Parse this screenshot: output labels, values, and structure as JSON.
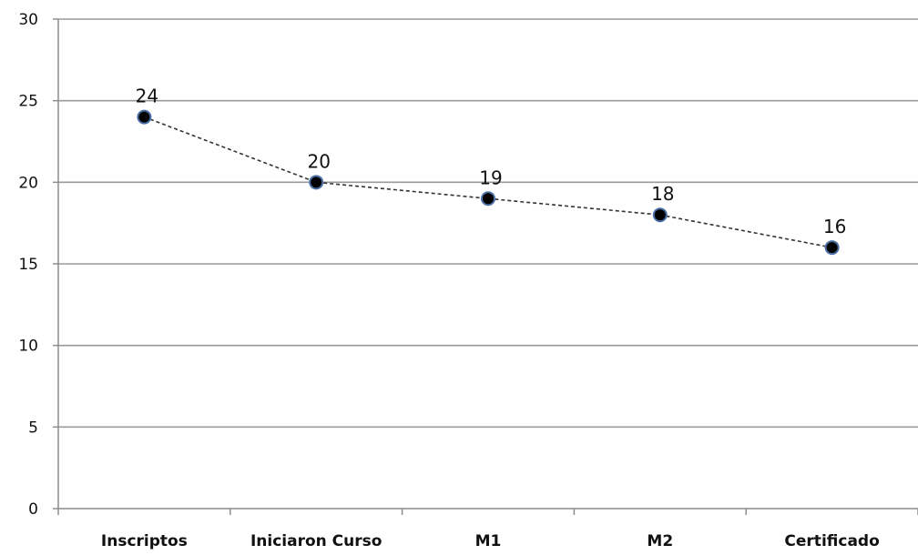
{
  "chart_data": {
    "type": "line",
    "categories": [
      "Inscriptos",
      "Iniciaron Curso",
      "M1",
      "M2",
      "Certificado"
    ],
    "series": [
      {
        "values": [
          24,
          20,
          19,
          18,
          16
        ]
      }
    ],
    "data_labels": [
      "24",
      "20",
      "19",
      "18",
      "16"
    ],
    "yticks": [
      "0",
      "5",
      "10",
      "15",
      "20",
      "25",
      "30"
    ],
    "ylim": [
      0,
      30
    ],
    "grid": true,
    "line_style": "dashed",
    "marker": "circle",
    "colors": {
      "line": "#333333",
      "marker_fill": "#000000",
      "marker_stroke": "#4a6fa5",
      "grid": "#9a9a9a",
      "axis": "#8c8c8c"
    }
  }
}
